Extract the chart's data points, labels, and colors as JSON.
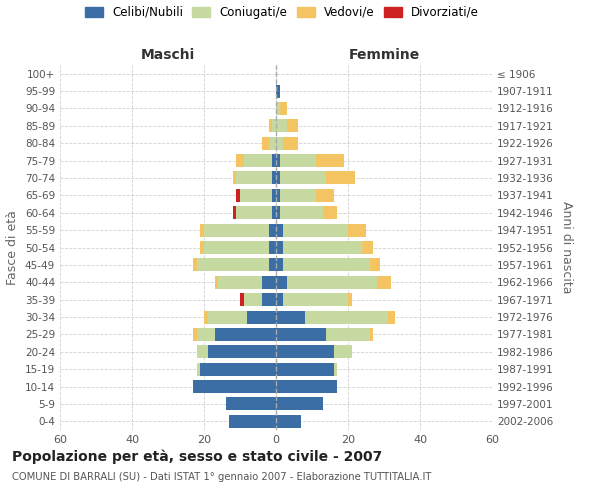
{
  "age_groups": [
    "0-4",
    "5-9",
    "10-14",
    "15-19",
    "20-24",
    "25-29",
    "30-34",
    "35-39",
    "40-44",
    "45-49",
    "50-54",
    "55-59",
    "60-64",
    "65-69",
    "70-74",
    "75-79",
    "80-84",
    "85-89",
    "90-94",
    "95-99",
    "100+"
  ],
  "birth_years": [
    "2002-2006",
    "1997-2001",
    "1992-1996",
    "1987-1991",
    "1982-1986",
    "1977-1981",
    "1972-1976",
    "1967-1971",
    "1962-1966",
    "1957-1961",
    "1952-1956",
    "1947-1951",
    "1942-1946",
    "1937-1941",
    "1932-1936",
    "1927-1931",
    "1922-1926",
    "1917-1921",
    "1912-1916",
    "1907-1911",
    "≤ 1906"
  ],
  "maschi": {
    "celibi": [
      13,
      14,
      23,
      21,
      19,
      17,
      8,
      4,
      4,
      2,
      2,
      2,
      1,
      1,
      1,
      1,
      0,
      0,
      0,
      0,
      0
    ],
    "coniugati": [
      0,
      0,
      0,
      1,
      3,
      5,
      11,
      5,
      12,
      20,
      18,
      18,
      10,
      9,
      10,
      8,
      2,
      1,
      0,
      0,
      0
    ],
    "vedovi": [
      0,
      0,
      0,
      0,
      0,
      1,
      1,
      0,
      1,
      1,
      1,
      1,
      0,
      0,
      1,
      2,
      2,
      1,
      0,
      0,
      0
    ],
    "divorziati": [
      0,
      0,
      0,
      0,
      0,
      0,
      0,
      1,
      0,
      0,
      0,
      0,
      1,
      1,
      0,
      0,
      0,
      0,
      0,
      0,
      0
    ]
  },
  "femmine": {
    "nubili": [
      7,
      13,
      17,
      16,
      16,
      14,
      8,
      2,
      3,
      2,
      2,
      2,
      1,
      1,
      1,
      1,
      0,
      0,
      0,
      1,
      0
    ],
    "coniugate": [
      0,
      0,
      0,
      1,
      5,
      12,
      23,
      18,
      25,
      24,
      22,
      18,
      12,
      10,
      13,
      10,
      2,
      3,
      1,
      0,
      0
    ],
    "vedove": [
      0,
      0,
      0,
      0,
      0,
      1,
      2,
      1,
      4,
      3,
      3,
      5,
      4,
      5,
      8,
      8,
      4,
      3,
      2,
      0,
      0
    ],
    "divorziate": [
      0,
      0,
      0,
      0,
      0,
      0,
      0,
      0,
      0,
      0,
      0,
      0,
      0,
      0,
      0,
      0,
      0,
      0,
      0,
      0,
      0
    ]
  },
  "colors": {
    "celibi": "#3a6ea5",
    "coniugati": "#c5d9a0",
    "vedovi": "#f5c462",
    "divorziati": "#cc2222"
  },
  "xlim": 60,
  "title": "Popolazione per età, sesso e stato civile - 2007",
  "subtitle": "COMUNE DI BARRALI (SU) - Dati ISTAT 1° gennaio 2007 - Elaborazione TUTTITALIA.IT",
  "ylabel_left": "Fasce di età",
  "ylabel_right": "Anni di nascita",
  "xlabel_maschi": "Maschi",
  "xlabel_femmine": "Femmine",
  "bg_color": "#ffffff",
  "grid_color": "#cccccc"
}
